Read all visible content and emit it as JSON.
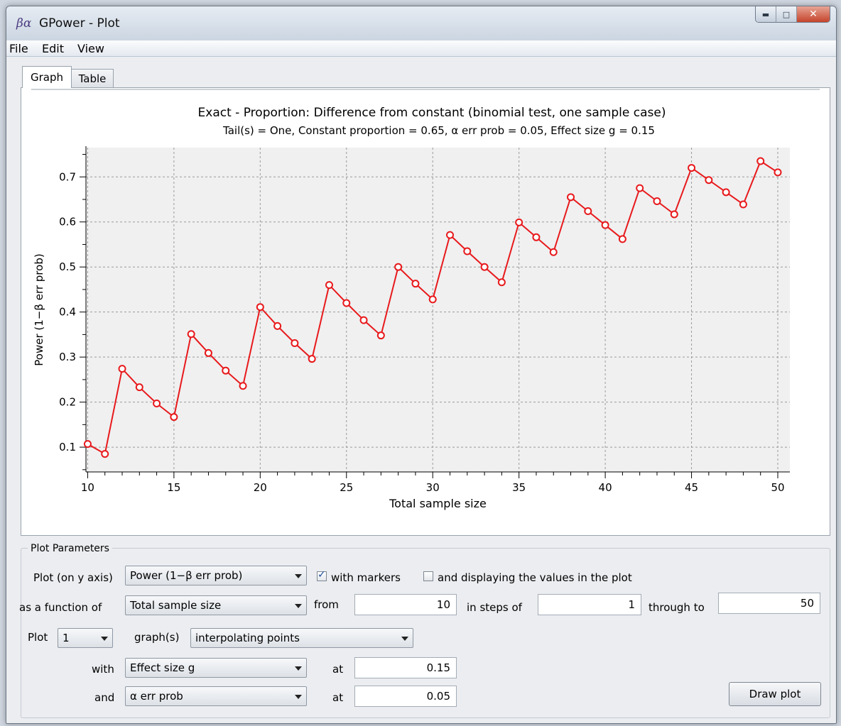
{
  "window": {
    "title": "GPower - Plot",
    "app_icon": "βα"
  },
  "menu": {
    "file": "File",
    "edit": "Edit",
    "view": "View"
  },
  "tabs": {
    "graph": "Graph",
    "table": "Table"
  },
  "chart_data": {
    "type": "line",
    "title": "Exact - Proportion: Difference from constant (binomial test, one sample case)",
    "subtitle": "Tail(s) = One, Constant proportion = 0.65, α err prob = 0.05, Effect size g = 0.15",
    "xlabel": "Total sample size",
    "ylabel": "Power (1−β err prob)",
    "xlim": [
      9.9,
      50.7
    ],
    "ylim": [
      0.045,
      0.765
    ],
    "x_ticks": [
      10,
      15,
      20,
      25,
      30,
      35,
      40,
      45,
      50
    ],
    "y_ticks": [
      0.1,
      0.2,
      0.3,
      0.4,
      0.5,
      0.6,
      0.7
    ],
    "grid": true,
    "markers": true,
    "line_color": "#e8191c",
    "series": [
      {
        "x": [
          10,
          11,
          12,
          13,
          14,
          15,
          16,
          17,
          18,
          19,
          20,
          21,
          22,
          23,
          24,
          25,
          26,
          27,
          28,
          29,
          30,
          31,
          32,
          33,
          34,
          35,
          36,
          37,
          38,
          39,
          40,
          41,
          42,
          43,
          44,
          45,
          46,
          47,
          48,
          49,
          50
        ],
        "values": [
          0.107,
          0.085,
          0.274,
          0.233,
          0.197,
          0.167,
          0.351,
          0.309,
          0.27,
          0.236,
          0.411,
          0.369,
          0.331,
          0.296,
          0.46,
          0.42,
          0.382,
          0.348,
          0.5,
          0.463,
          0.428,
          0.571,
          0.535,
          0.5,
          0.466,
          0.599,
          0.566,
          0.533,
          0.655,
          0.624,
          0.593,
          0.562,
          0.675,
          0.646,
          0.617,
          0.72,
          0.693,
          0.666,
          0.639,
          0.735,
          0.71
        ]
      }
    ]
  },
  "params": {
    "group_title": "Plot Parameters",
    "y_axis_label": "Plot (on y axis)",
    "y_axis_value": "Power (1−β err prob)",
    "with_markers": "with markers",
    "display_values": "and displaying the values in the plot",
    "function_of_label": "as a function of",
    "function_of_value": "Total sample size",
    "from_label": "from",
    "from_value": "10",
    "steps_label": "in steps of",
    "steps_value": "1",
    "through_label": "through to",
    "through_value": "50",
    "plot_label": "Plot",
    "plot_count": "1",
    "graphs_label": "graph(s)",
    "graphs_mode": "interpolating points",
    "with_label": "with",
    "with_value": "Effect size g",
    "at_label": "at",
    "with_at_value": "0.15",
    "and_label": "and",
    "and_value": "α err prob",
    "and_at_value": "0.05",
    "draw_button": "Draw plot"
  }
}
